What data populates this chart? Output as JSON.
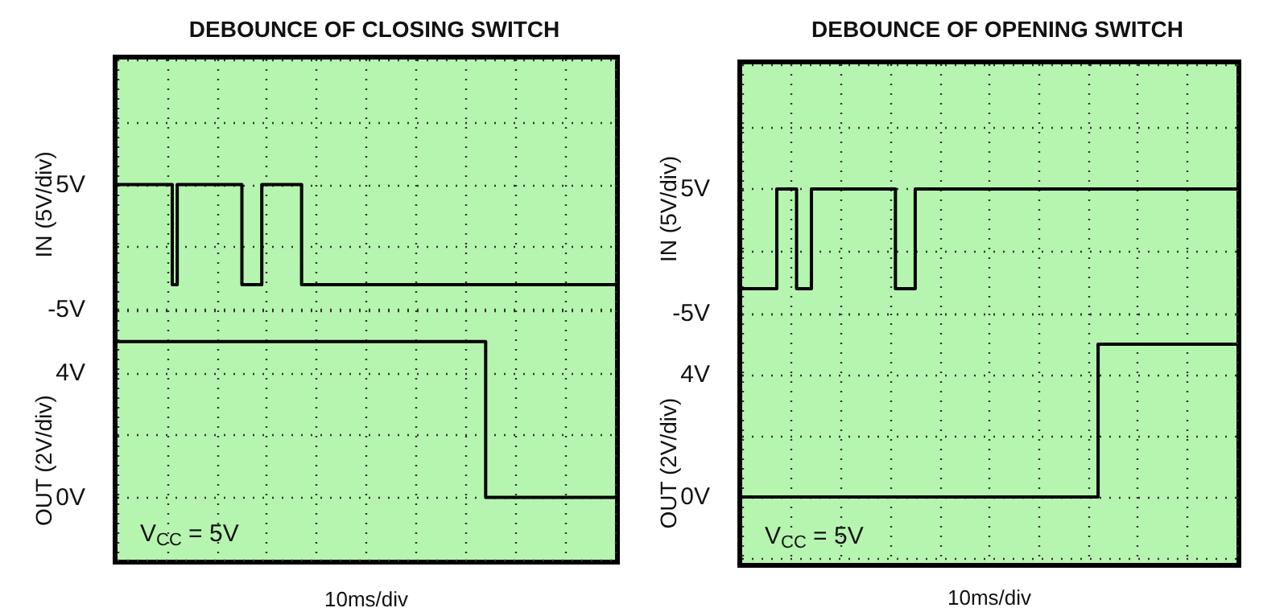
{
  "chart_data": [
    {
      "type": "step",
      "title": "DEBOUNCE OF CLOSING SWITCH",
      "ylabel": "IN (5V/div)",
      "categories": [
        null,
        null,
        null,
        null,
        null,
        null,
        null,
        null,
        null,
        null,
        null,
        null,
        null,
        null,
        null,
        null,
        null,
        null,
        null,
        null,
        null,
        null,
        null,
        null,
        null,
        null,
        null,
        null,
        null,
        null,
        null,
        null,
        null,
        null,
        null,
        null,
        null,
        null,
        null,
        null,
        null,
        null,
        null,
        null,
        null,
        null,
        null,
        null,
        null,
        null,
        null,
        null,
        null,
        null,
        null,
        null,
        null,
        null,
        null,
        null,
        null,
        null,
        null,
        null,
        null,
        null,
        null,
        null,
        null,
        null,
        null,
        null,
        null,
        null,
        null,
        null,
        null,
        null,
        null,
        null,
        null,
        null,
        null,
        null,
        null,
        null,
        null,
        null,
        null,
        null,
        null,
        null,
        null,
        null,
        null,
        null,
        null,
        null,
        null,
        null,
        null
      ],
      "ylim": [
        -5,
        15
      ],
      "yticks": [
        {
          "value": -5,
          "label": "-5V"
        },
        {
          "value": 0,
          "label": null
        },
        {
          "value": 5,
          "label": "5V"
        },
        {
          "value": 10,
          "label": null
        },
        {
          "value": 15,
          "label": null
        }
      ],
      "tick_labels": "y",
      "grid": true,
      "series": [
        {
          "color": "#000000",
          "values": [
            5,
            5,
            5,
            5,
            5,
            5,
            5,
            5,
            5,
            5,
            5,
            -3,
            5,
            5,
            5,
            5,
            5,
            5,
            5,
            5,
            5,
            5,
            5,
            5,
            5,
            -3,
            -3,
            -3,
            -3,
            5,
            5,
            5,
            5,
            5,
            5,
            5,
            5,
            -3,
            -3,
            -3,
            -3,
            -3,
            -3,
            -3,
            -3,
            -3,
            -3,
            -3,
            -3,
            -3,
            -3,
            -3,
            -3,
            -3,
            -3,
            -3,
            -3,
            -3,
            -3,
            -3,
            -3,
            -3,
            -3,
            -3,
            -3,
            -3,
            -3,
            -3,
            -3,
            -3,
            -3,
            -3,
            -3,
            -3,
            -3,
            -3,
            -3,
            -3,
            -3,
            -3,
            -3,
            -3,
            -3,
            -3,
            -3,
            -3,
            -3,
            -3,
            -3,
            -3,
            -3,
            -3,
            -3,
            -3,
            -3,
            -3,
            -3,
            -3,
            -3,
            -3,
            -3
          ]
        }
      ]
    },
    {
      "type": "step",
      "xlabel": "10ms/div",
      "ylabel": "OUT (2V/div)",
      "annotations": [
        "V$_{CC}$ = 5V"
      ],
      "categories": [
        null,
        null,
        null,
        null,
        null,
        null,
        null,
        null,
        null,
        null,
        null,
        null,
        null,
        null,
        null,
        null,
        null,
        null,
        null,
        null,
        null,
        null,
        null,
        null,
        null,
        null,
        null,
        null,
        null,
        null,
        null,
        null,
        null,
        null,
        null,
        null,
        null,
        null,
        null,
        null,
        null,
        null,
        null,
        null,
        null,
        null,
        null,
        null,
        null,
        null,
        null,
        null,
        null,
        null,
        null,
        null,
        null,
        null,
        null,
        null,
        null,
        null,
        null,
        null,
        null,
        null,
        null,
        null,
        null,
        null,
        null,
        null,
        null,
        null,
        null,
        null,
        null,
        null,
        null,
        null,
        null,
        null,
        null,
        null,
        null,
        null,
        null,
        null,
        null,
        null,
        null,
        null,
        null,
        null,
        null,
        null,
        null,
        null,
        null,
        null,
        null
      ],
      "ylim": [
        -2,
        6
      ],
      "yticks": [
        {
          "value": -2,
          "label": null
        },
        {
          "value": 0,
          "label": "0V"
        },
        {
          "value": 2,
          "label": null
        },
        {
          "value": 4,
          "label": "4V"
        },
        {
          "value": 6,
          "label": null
        }
      ],
      "tick_labels": "y",
      "grid": true,
      "series": [
        {
          "color": "#000000",
          "values": [
            5,
            5,
            5,
            5,
            5,
            5,
            5,
            5,
            5,
            5,
            5,
            5,
            5,
            5,
            5,
            5,
            5,
            5,
            5,
            5,
            5,
            5,
            5,
            5,
            5,
            5,
            5,
            5,
            5,
            5,
            5,
            5,
            5,
            5,
            5,
            5,
            5,
            5,
            5,
            5,
            5,
            5,
            5,
            5,
            5,
            5,
            5,
            5,
            5,
            5,
            5,
            5,
            5,
            5,
            5,
            5,
            5,
            5,
            5,
            5,
            5,
            5,
            5,
            5,
            5,
            5,
            5,
            5,
            5,
            5,
            5,
            5,
            5,
            5,
            0,
            0,
            0,
            0,
            0,
            0,
            0,
            0,
            0,
            0,
            0,
            0,
            0,
            0,
            0,
            0,
            0,
            0,
            0,
            0,
            0,
            0,
            0,
            0,
            0,
            0,
            0
          ]
        }
      ]
    },
    {
      "type": "step",
      "title": "DEBOUNCE OF OPENING SWITCH",
      "ylabel": "IN (5V/div)",
      "categories": [
        null,
        null,
        null,
        null,
        null,
        null,
        null,
        null,
        null,
        null,
        null,
        null,
        null,
        null,
        null,
        null,
        null,
        null,
        null,
        null,
        null,
        null,
        null,
        null,
        null,
        null,
        null,
        null,
        null,
        null,
        null,
        null,
        null,
        null,
        null,
        null,
        null,
        null,
        null,
        null,
        null,
        null,
        null,
        null,
        null,
        null,
        null,
        null,
        null,
        null,
        null,
        null,
        null,
        null,
        null,
        null,
        null,
        null,
        null,
        null,
        null,
        null,
        null,
        null,
        null,
        null,
        null,
        null,
        null,
        null,
        null,
        null,
        null,
        null,
        null,
        null,
        null,
        null,
        null,
        null,
        null,
        null,
        null,
        null,
        null,
        null,
        null,
        null,
        null,
        null,
        null,
        null,
        null,
        null,
        null,
        null,
        null,
        null,
        null,
        null,
        null
      ],
      "ylim": [
        -5,
        15
      ],
      "yticks": [
        {
          "value": -5,
          "label": "-5V"
        },
        {
          "value": 0,
          "label": null
        },
        {
          "value": 5,
          "label": "5V"
        },
        {
          "value": 10,
          "label": null
        },
        {
          "value": 15,
          "label": null
        }
      ],
      "tick_labels": "y",
      "grid": true,
      "series": [
        {
          "color": "#000000",
          "values": [
            -3,
            -3,
            -3,
            -3,
            -3,
            -3,
            -3,
            5,
            5,
            5,
            5,
            -3,
            -3,
            -3,
            5,
            5,
            5,
            5,
            5,
            5,
            5,
            5,
            5,
            5,
            5,
            5,
            5,
            5,
            5,
            5,
            5,
            -3,
            -3,
            -3,
            -3,
            5,
            5,
            5,
            5,
            5,
            5,
            5,
            5,
            5,
            5,
            5,
            5,
            5,
            5,
            5,
            5,
            5,
            5,
            5,
            5,
            5,
            5,
            5,
            5,
            5,
            5,
            5,
            5,
            5,
            5,
            5,
            5,
            5,
            5,
            5,
            5,
            5,
            5,
            5,
            5,
            5,
            5,
            5,
            5,
            5,
            5,
            5,
            5,
            5,
            5,
            5,
            5,
            5,
            5,
            5,
            5,
            5,
            5,
            5,
            5,
            5,
            5,
            5,
            5,
            5,
            5
          ]
        }
      ]
    },
    {
      "type": "step",
      "xlabel": "10ms/div",
      "ylabel": "OUT (2V/div)",
      "annotations": [
        "V$_{CC}$ = 5V"
      ],
      "categories": [
        null,
        null,
        null,
        null,
        null,
        null,
        null,
        null,
        null,
        null,
        null,
        null,
        null,
        null,
        null,
        null,
        null,
        null,
        null,
        null,
        null,
        null,
        null,
        null,
        null,
        null,
        null,
        null,
        null,
        null,
        null,
        null,
        null,
        null,
        null,
        null,
        null,
        null,
        null,
        null,
        null,
        null,
        null,
        null,
        null,
        null,
        null,
        null,
        null,
        null,
        null,
        null,
        null,
        null,
        null,
        null,
        null,
        null,
        null,
        null,
        null,
        null,
        null,
        null,
        null,
        null,
        null,
        null,
        null,
        null,
        null,
        null,
        null,
        null,
        null,
        null,
        null,
        null,
        null,
        null,
        null,
        null,
        null,
        null,
        null,
        null,
        null,
        null,
        null,
        null,
        null,
        null,
        null,
        null,
        null,
        null,
        null,
        null,
        null,
        null,
        null
      ],
      "ylim": [
        -2,
        6
      ],
      "yticks": [
        {
          "value": -2,
          "label": null
        },
        {
          "value": 0,
          "label": "0V"
        },
        {
          "value": 2,
          "label": null
        },
        {
          "value": 4,
          "label": "4V"
        },
        {
          "value": 6,
          "label": null
        }
      ],
      "tick_labels": "y",
      "grid": true,
      "series": [
        {
          "color": "#000000",
          "values": [
            0,
            0,
            0,
            0,
            0,
            0,
            0,
            0,
            0,
            0,
            0,
            0,
            0,
            0,
            0,
            0,
            0,
            0,
            0,
            0,
            0,
            0,
            0,
            0,
            0,
            0,
            0,
            0,
            0,
            0,
            0,
            0,
            0,
            0,
            0,
            0,
            0,
            0,
            0,
            0,
            0,
            0,
            0,
            0,
            0,
            0,
            0,
            0,
            0,
            0,
            0,
            0,
            0,
            0,
            0,
            0,
            0,
            0,
            0,
            0,
            0,
            0,
            0,
            0,
            0,
            0,
            0,
            0,
            0,
            0,
            0,
            0,
            5,
            5,
            5,
            5,
            5,
            5,
            5,
            5,
            5,
            5,
            5,
            5,
            5,
            5,
            5,
            5,
            5,
            5,
            5,
            5,
            5,
            5,
            5,
            5,
            5,
            5,
            5,
            5,
            5
          ]
        }
      ]
    }
  ]
}
